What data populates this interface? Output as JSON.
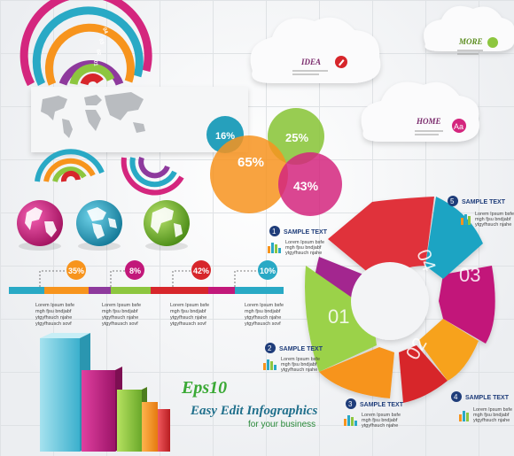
{
  "clouds": {
    "idea_label": "IDEA",
    "more_label": "MORE",
    "home_label": "HOME",
    "home_icon_text": "Aa"
  },
  "arc_labels": [
    "04",
    "03",
    "02",
    "01"
  ],
  "bubbles": [
    {
      "label": "16%",
      "color": "#1a9bb8"
    },
    {
      "label": "25%",
      "color": "#8dc63f"
    },
    {
      "label": "65%",
      "color": "#f7931e"
    },
    {
      "label": "43%",
      "color": "#d4267e"
    }
  ],
  "timeline": {
    "markers": [
      {
        "label": "35%",
        "color": "#f7941d"
      },
      {
        "label": "8%",
        "color": "#c2187a"
      },
      {
        "label": "42%",
        "color": "#d7262b"
      },
      {
        "label": "10%",
        "color": "#29a9c5"
      }
    ],
    "lines": [
      "Lorem Ipsum bsfe",
      "mgh fjsu bndjabf",
      "ytgyfhsuch njahe",
      "ytgyfhsusch sovf"
    ]
  },
  "ring": {
    "segment_labels": [
      "01",
      "02",
      "03",
      "04"
    ],
    "callouts": [
      {
        "num": "1",
        "text": "SAMPLE TEXT"
      },
      {
        "num": "2",
        "text": "SAMPLE TEXT"
      },
      {
        "num": "3",
        "text": "SAMPLE TEXT"
      },
      {
        "num": "4",
        "text": "SAMPLE TEXT"
      },
      {
        "num": "5",
        "text": "SAMPLE TEXT"
      }
    ],
    "callout_lines": [
      "Lorem Ipsum bsfe",
      "mgh fjsu bndjabf",
      "ytgyfhsuch njahe"
    ]
  },
  "title": {
    "eps": "Eps10",
    "main": "Easy Edit Infographics",
    "sub": "for your business"
  },
  "colors": {
    "teal": "#29a9c5",
    "magenta": "#c2187a",
    "green": "#8dc63f",
    "orange": "#f7941d",
    "red": "#d7262b",
    "purple": "#8e3a9d"
  }
}
